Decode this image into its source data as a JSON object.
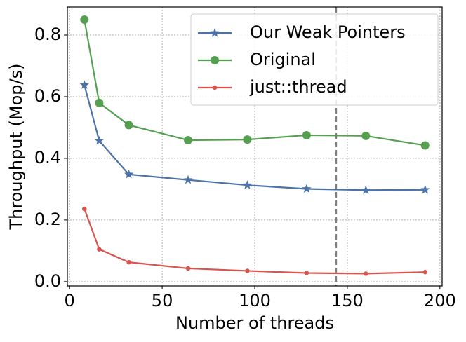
{
  "chart_data": {
    "type": "line",
    "xlabel": "Number of threads",
    "ylabel": "Throughput (Mop/s)",
    "x": [
      8,
      16,
      32,
      64,
      96,
      128,
      160,
      192
    ],
    "series": [
      {
        "name": "Our Weak Pointers",
        "color": "#4c72a8",
        "marker": "star",
        "values": [
          0.638,
          0.457,
          0.348,
          0.33,
          0.313,
          0.301,
          0.297,
          0.298
        ]
      },
      {
        "name": "Original",
        "color": "#55a050",
        "marker": "circle",
        "values": [
          0.85,
          0.58,
          0.508,
          0.459,
          0.461,
          0.475,
          0.473,
          0.442
        ]
      },
      {
        "name": "just::thread",
        "color": "#d9534f",
        "marker": "dot",
        "values": [
          0.236,
          0.105,
          0.063,
          0.043,
          0.035,
          0.028,
          0.026,
          0.031
        ]
      }
    ],
    "vline": 144,
    "xlim": [
      -1.2,
      201.2
    ],
    "xticks": [
      0,
      50,
      100,
      150,
      200
    ],
    "ylim": [
      -0.014,
      0.891
    ],
    "yticks": [
      {
        "value": 0,
        "label": "0.0"
      },
      0.2,
      0.4,
      0.6,
      0.8
    ],
    "grid": true,
    "legend": "upper right"
  }
}
